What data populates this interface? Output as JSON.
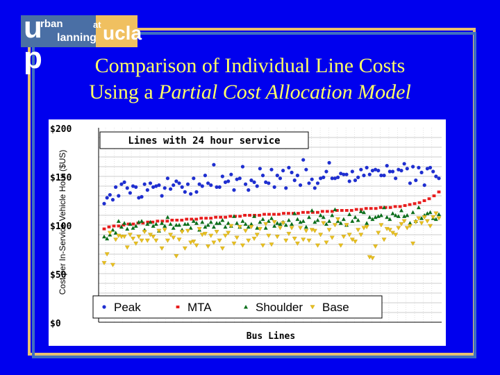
{
  "logo": {
    "letter_u": "u",
    "letter_p": "p",
    "rban": "rban",
    "lanning": "lanning",
    "at": "at",
    "ucla": "ucla"
  },
  "title": {
    "line1": "Comparison of Individual Line Costs",
    "line2_prefix": "Using a ",
    "line2_italic": "Partial Cost Allocation Model"
  },
  "chart_data": {
    "type": "scatter",
    "title": "Lines with 24 hour service",
    "ylabel": "Cost per In-Service Vehicle Hour ($US)",
    "xlabel": "Bus Lines",
    "ylim": [
      0,
      200
    ],
    "yticks": [
      "$0",
      "$50",
      "$100",
      "$150",
      "$200"
    ],
    "ytick_values": [
      0,
      50,
      100,
      150,
      200
    ],
    "legend_position": "bottom",
    "colors": {
      "Peak": "#1f2fd0",
      "MTA": "#e81e1e",
      "Shoulder": "#0a6e1a",
      "Base": "#e8c020"
    },
    "series": [
      {
        "name": "Peak",
        "marker": "circle",
        "values": [
          122,
          128,
          131,
          126,
          139,
          130,
          142,
          144,
          138,
          133,
          140,
          139,
          128,
          129,
          142,
          136,
          143,
          139,
          140,
          141,
          130,
          138,
          148,
          137,
          141,
          145,
          143,
          139,
          134,
          142,
          132,
          148,
          134,
          142,
          140,
          151,
          143,
          141,
          162,
          139,
          139,
          150,
          144,
          145,
          152,
          136,
          147,
          148,
          160,
          142,
          136,
          146,
          144,
          140,
          158,
          151,
          144,
          143,
          157,
          139,
          151,
          148,
          156,
          138,
          159,
          154,
          146,
          151,
          141,
          167,
          157,
          143,
          147,
          138,
          143,
          148,
          149,
          155,
          164,
          148,
          148,
          149,
          153,
          152,
          152,
          145,
          155,
          146,
          149,
          157,
          151,
          159,
          152,
          156,
          157,
          156,
          151,
          151,
          161,
          155,
          155,
          148,
          157,
          156,
          163,
          158,
          143,
          160,
          146,
          159,
          154,
          141,
          158,
          159,
          155,
          150,
          148
        ]
      },
      {
        "name": "MTA",
        "marker": "square",
        "values": [
          96,
          98,
          99,
          99,
          100,
          101,
          101,
          102,
          102,
          103,
          103,
          104,
          104,
          104,
          105,
          105,
          105,
          106,
          106,
          106,
          107,
          107,
          107,
          108,
          108,
          108,
          109,
          109,
          109,
          110,
          110,
          110,
          110,
          111,
          111,
          111,
          111,
          112,
          112,
          112,
          112,
          113,
          113,
          113,
          113,
          114,
          114,
          114,
          115,
          115,
          115,
          115,
          116,
          116,
          117,
          117,
          117,
          118,
          118,
          118,
          119,
          119,
          120,
          121,
          122,
          123,
          125,
          127,
          130,
          134
        ]
      },
      {
        "name": "Shoulder",
        "marker": "triangle-up",
        "values": [
          88,
          86,
          90,
          95,
          92,
          104,
          98,
          102,
          96,
          101,
          97,
          99,
          103,
          104,
          95,
          101,
          103,
          99,
          101,
          94,
          102,
          99,
          108,
          101,
          97,
          100,
          100,
          95,
          101,
          101,
          97,
          104,
          102,
          95,
          103,
          98,
          100,
          103,
          98,
          102,
          102,
          105,
          98,
          102,
          99,
          109,
          102,
          98,
          104,
          101,
          98,
          101,
          109,
          97,
          103,
          106,
          97,
          104,
          107,
          99,
          102,
          101,
          103,
          100,
          105,
          101,
          112,
          106,
          103,
          104,
          98,
          108,
          115,
          103,
          105,
          110,
          108,
          101,
          104,
          110,
          116,
          104,
          102,
          106,
          100,
          111,
          104,
          108,
          105,
          114,
          113,
          102,
          108,
          106,
          108,
          109,
          110,
          118,
          108,
          106,
          112,
          110,
          109,
          115,
          109,
          110,
          102,
          113,
          104,
          118,
          107,
          110,
          112,
          113,
          107,
          106,
          111
        ]
      },
      {
        "name": "Base",
        "marker": "triangle-down",
        "values": [
          61,
          70,
          92,
          59,
          85,
          89,
          88,
          88,
          77,
          90,
          86,
          81,
          88,
          84,
          93,
          84,
          90,
          88,
          84,
          94,
          76,
          95,
          84,
          90,
          87,
          68,
          85,
          93,
          76,
          94,
          82,
          83,
          79,
          96,
          90,
          91,
          78,
          89,
          82,
          93,
          84,
          76,
          89,
          92,
          99,
          81,
          87,
          98,
          79,
          94,
          84,
          98,
          86,
          90,
          96,
          79,
          101,
          89,
          80,
          103,
          88,
          97,
          102,
          84,
          91,
          97,
          86,
          81,
          97,
          85,
          94,
          84,
          95,
          94,
          79,
          90,
          102,
          82,
          95,
          87,
          100,
          106,
          79,
          88,
          100,
          90,
          85,
          83,
          95,
          90,
          97,
          98,
          67,
          66,
          78,
          92,
          100,
          85,
          96,
          95,
          92,
          90,
          97,
          101,
          104,
          97,
          99,
          81,
          103,
          107,
          102,
          108,
          104,
          99,
          108,
          112,
          107
        ]
      }
    ]
  }
}
